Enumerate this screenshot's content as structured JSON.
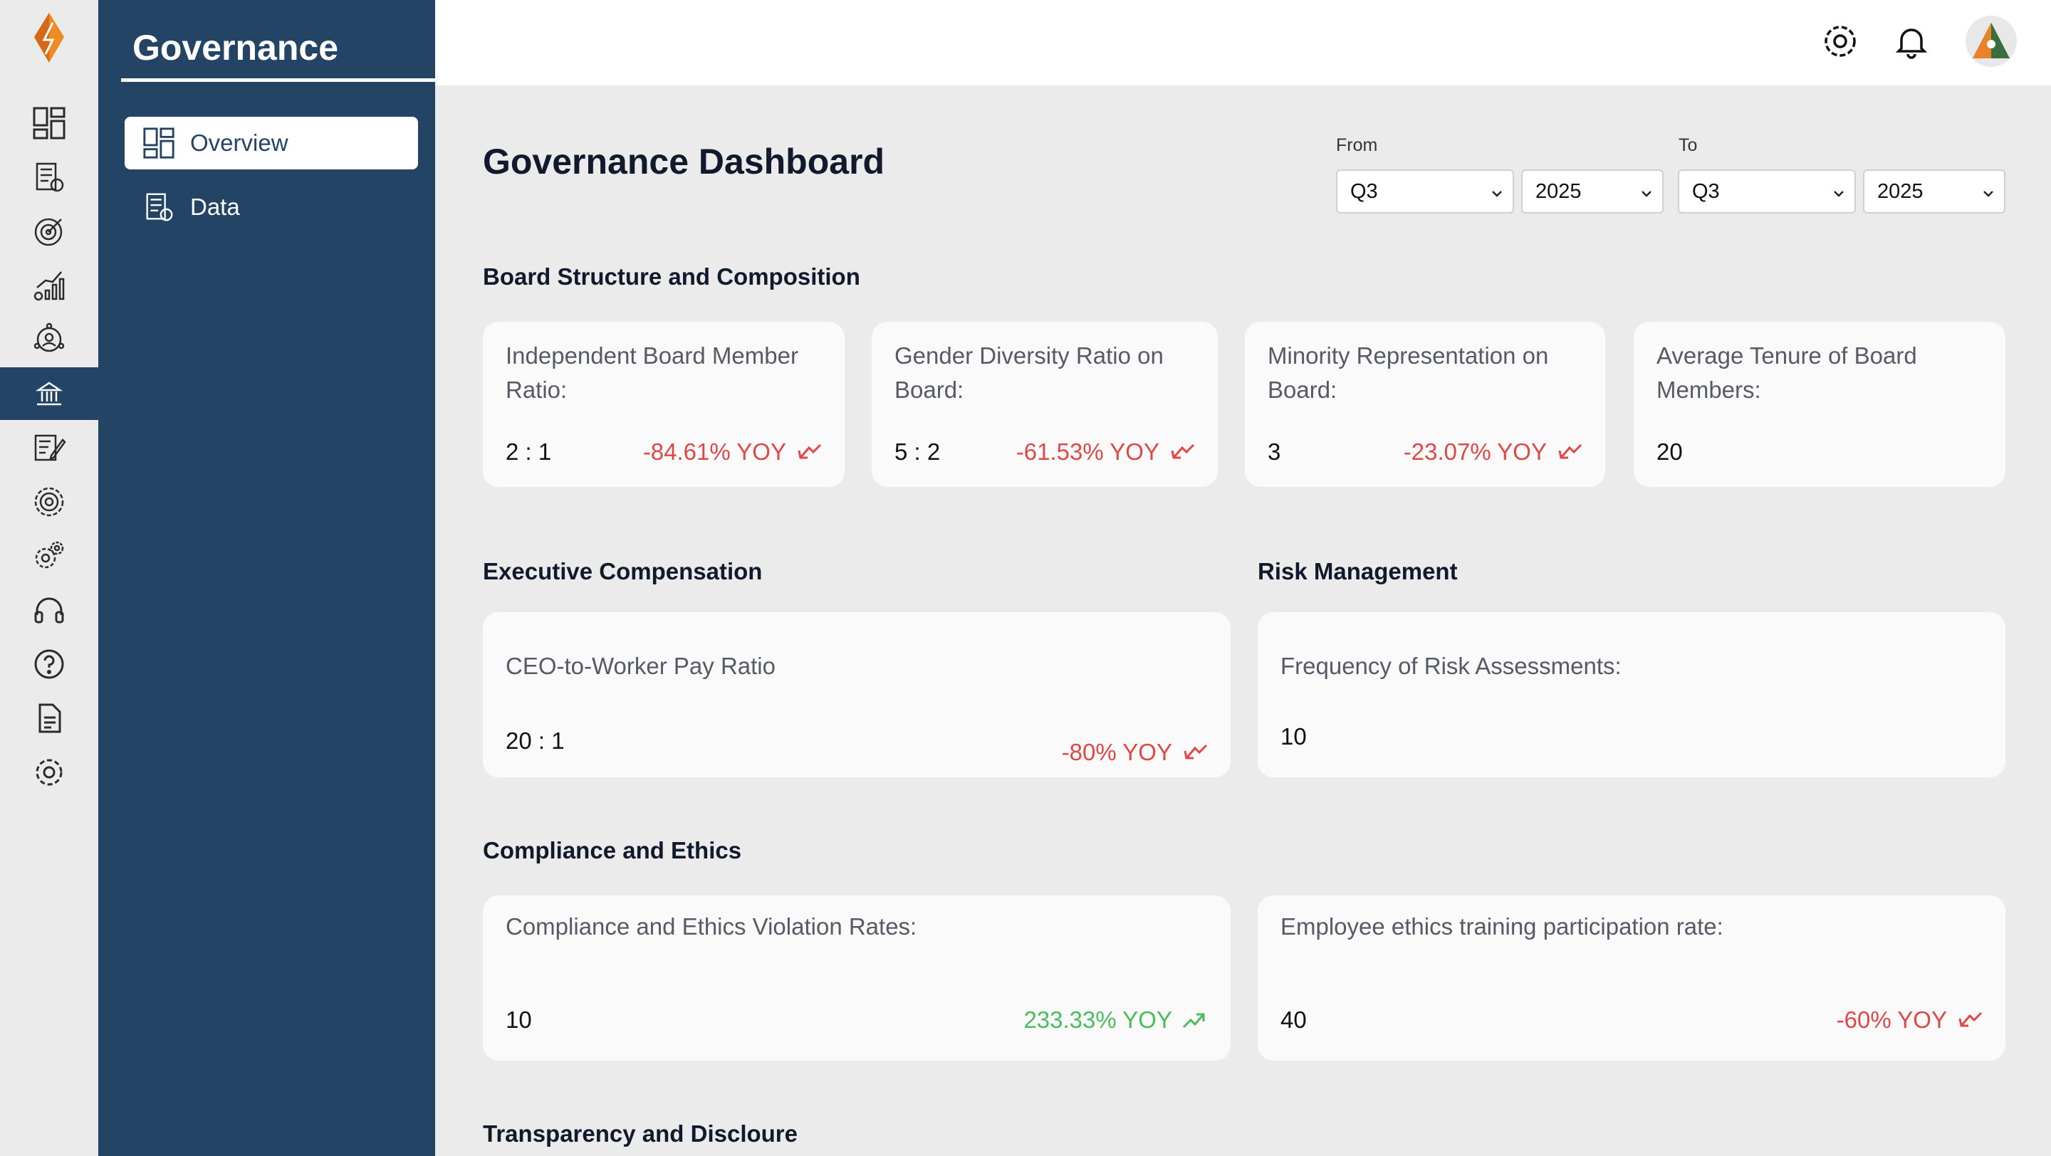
{
  "rail": {
    "icons": [
      "logo-icon",
      "dashboard-icon",
      "document-report-icon",
      "target-icon",
      "growth-chart-icon",
      "network-icon",
      "governance-icon",
      "edit-document-icon",
      "settings-gear-icon",
      "settings-icon",
      "headset-icon",
      "help-icon",
      "file-icon",
      "gear-icon"
    ],
    "active_icon": "governance-icon"
  },
  "sidebar": {
    "title": "Governance",
    "items": [
      {
        "label": "Overview",
        "icon": "dashboard-icon",
        "active": true
      },
      {
        "label": "Data",
        "icon": "document-report-icon",
        "active": false
      }
    ]
  },
  "header": {
    "icons": [
      "settings-icon",
      "bell-icon",
      "avatar"
    ]
  },
  "main": {
    "title": "Governance Dashboard",
    "filters": {
      "from_label": "From",
      "to_label": "To",
      "from_quarter": "Q3",
      "from_year": "2025",
      "to_quarter": "Q3",
      "to_year": "2025"
    },
    "sections": {
      "board": {
        "title": "Board Structure and Composition",
        "cards": [
          {
            "label_l1": "Independent Board Member",
            "label_l2": "Ratio:",
            "value": "2 : 1",
            "trend": "-84.61% YOY",
            "direction": "down"
          },
          {
            "label_l1": "Gender Diversity Ratio on",
            "label_l2": "Board:",
            "value": "5 : 2",
            "trend": "-61.53% YOY",
            "direction": "down"
          },
          {
            "label_l1": "Minority Representation on",
            "label_l2": "Board:",
            "value": "3",
            "trend": "-23.07% YOY",
            "direction": "down"
          },
          {
            "label_l1": "Average Tenure of Board",
            "label_l2": "Members:",
            "value": "20"
          }
        ]
      },
      "exec": {
        "title": "Executive Compensation",
        "card": {
          "label": "CEO-to-Worker Pay Ratio",
          "value": "20 : 1",
          "trend": "-80% YOY",
          "direction": "down"
        }
      },
      "risk": {
        "title": "Risk Management",
        "card": {
          "label": "Frequency of Risk Assessments:",
          "value": "10"
        }
      },
      "compliance": {
        "title": "Compliance and Ethics",
        "cards": [
          {
            "label": "Compliance and Ethics Violation Rates:",
            "value": "10",
            "trend": "233.33% YOY",
            "direction": "up"
          },
          {
            "label": "Employee ethics training participation rate:",
            "value": "40",
            "trend": "-60% YOY",
            "direction": "down"
          }
        ]
      },
      "transparency": {
        "title": "Transparency and Discloure"
      }
    }
  },
  "colors": {
    "sidebar_bg": "#244466",
    "page_bg": "#ebebeb",
    "card_bg": "#fafafa",
    "negative": "#e04848",
    "positive": "#4cbb5c",
    "logo_orange": "#f08a24"
  }
}
